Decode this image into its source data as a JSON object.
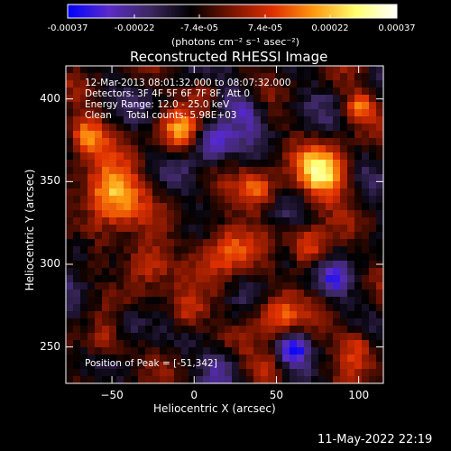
{
  "chart_data": {
    "type": "heatmap",
    "title": "Reconstructed RHESSI Image",
    "xlabel": "Heliocentric X (arcsec)",
    "ylabel": "Heliocentric Y (arcsec)",
    "xlim": [
      -78,
      115
    ],
    "ylim": [
      228,
      420
    ],
    "xticks": [
      -50,
      0,
      50,
      100
    ],
    "yticks": [
      250,
      300,
      350,
      400
    ],
    "colorbar": {
      "label": "(photons cm⁻² s⁻¹ asec⁻²)",
      "range": [
        -0.00037,
        0.00037
      ],
      "ticks": [
        {
          "value": -0.00037,
          "label": "-0.00037"
        },
        {
          "value": -0.00022,
          "label": "-0.00022"
        },
        {
          "value": -7.4e-05,
          "label": "-7.4e-05"
        },
        {
          "value": 7.4e-05,
          "label": "7.4e-05"
        },
        {
          "value": 0.00022,
          "label": "0.00022"
        },
        {
          "value": 0.00037,
          "label": "0.00037"
        }
      ],
      "colors": [
        "#0000ff",
        "#5a2bc8",
        "#3c2860",
        "#000000",
        "#7a1500",
        "#e03000",
        "#ff9a10",
        "#ffff70",
        "#ffffff"
      ]
    },
    "annotations": {
      "line1": "12-Mar-2013 08:01:32.000 to 08:07:32.000",
      "line2": "Detectors: 3F 4F 5F 6F 7F 8F, Att 0",
      "line3": "Energy Range: 12.0 - 25.0 keV",
      "line4": "Clean     Total counts: 5.98E+03",
      "peak": "Position of Peak = [-51,342]"
    },
    "peak": {
      "x": -51,
      "y": 342
    },
    "hotspots": [
      {
        "x": -51,
        "y": 342,
        "r": 18,
        "a": 1.0
      },
      {
        "x": -66,
        "y": 378,
        "r": 12,
        "a": 0.7
      },
      {
        "x": -30,
        "y": 300,
        "r": 14,
        "a": 0.65
      },
      {
        "x": -10,
        "y": 380,
        "r": 12,
        "a": 0.6
      },
      {
        "x": 20,
        "y": 310,
        "r": 16,
        "a": 0.7
      },
      {
        "x": 40,
        "y": 345,
        "r": 12,
        "a": 0.55
      },
      {
        "x": 78,
        "y": 355,
        "r": 16,
        "a": 0.95
      },
      {
        "x": 100,
        "y": 395,
        "r": 10,
        "a": 0.6
      },
      {
        "x": 70,
        "y": 310,
        "r": 12,
        "a": 0.6
      },
      {
        "x": -5,
        "y": 270,
        "r": 12,
        "a": 0.55
      },
      {
        "x": 50,
        "y": 270,
        "r": 14,
        "a": 0.6
      },
      {
        "x": 100,
        "y": 250,
        "r": 12,
        "a": 0.55
      },
      {
        "x": -55,
        "y": 252,
        "r": 12,
        "a": 0.5
      },
      {
        "x": 5,
        "y": 405,
        "r": 10,
        "a": 0.45
      },
      {
        "x": 45,
        "y": 238,
        "r": 10,
        "a": 0.45
      }
    ],
    "coldspots": [
      {
        "x": 10,
        "y": 375,
        "r": 11,
        "a": 0.9
      },
      {
        "x": 60,
        "y": 250,
        "r": 9,
        "a": 0.9
      },
      {
        "x": 30,
        "y": 395,
        "r": 12,
        "a": 0.7
      },
      {
        "x": -40,
        "y": 265,
        "r": 10,
        "a": 0.6
      },
      {
        "x": 85,
        "y": 290,
        "r": 10,
        "a": 0.6
      },
      {
        "x": -70,
        "y": 310,
        "r": 9,
        "a": 0.6
      },
      {
        "x": 55,
        "y": 305,
        "r": 9,
        "a": 0.5
      },
      {
        "x": 15,
        "y": 240,
        "r": 10,
        "a": 0.6
      }
    ]
  },
  "footer": {
    "date": "11-May-2022 22:19"
  }
}
